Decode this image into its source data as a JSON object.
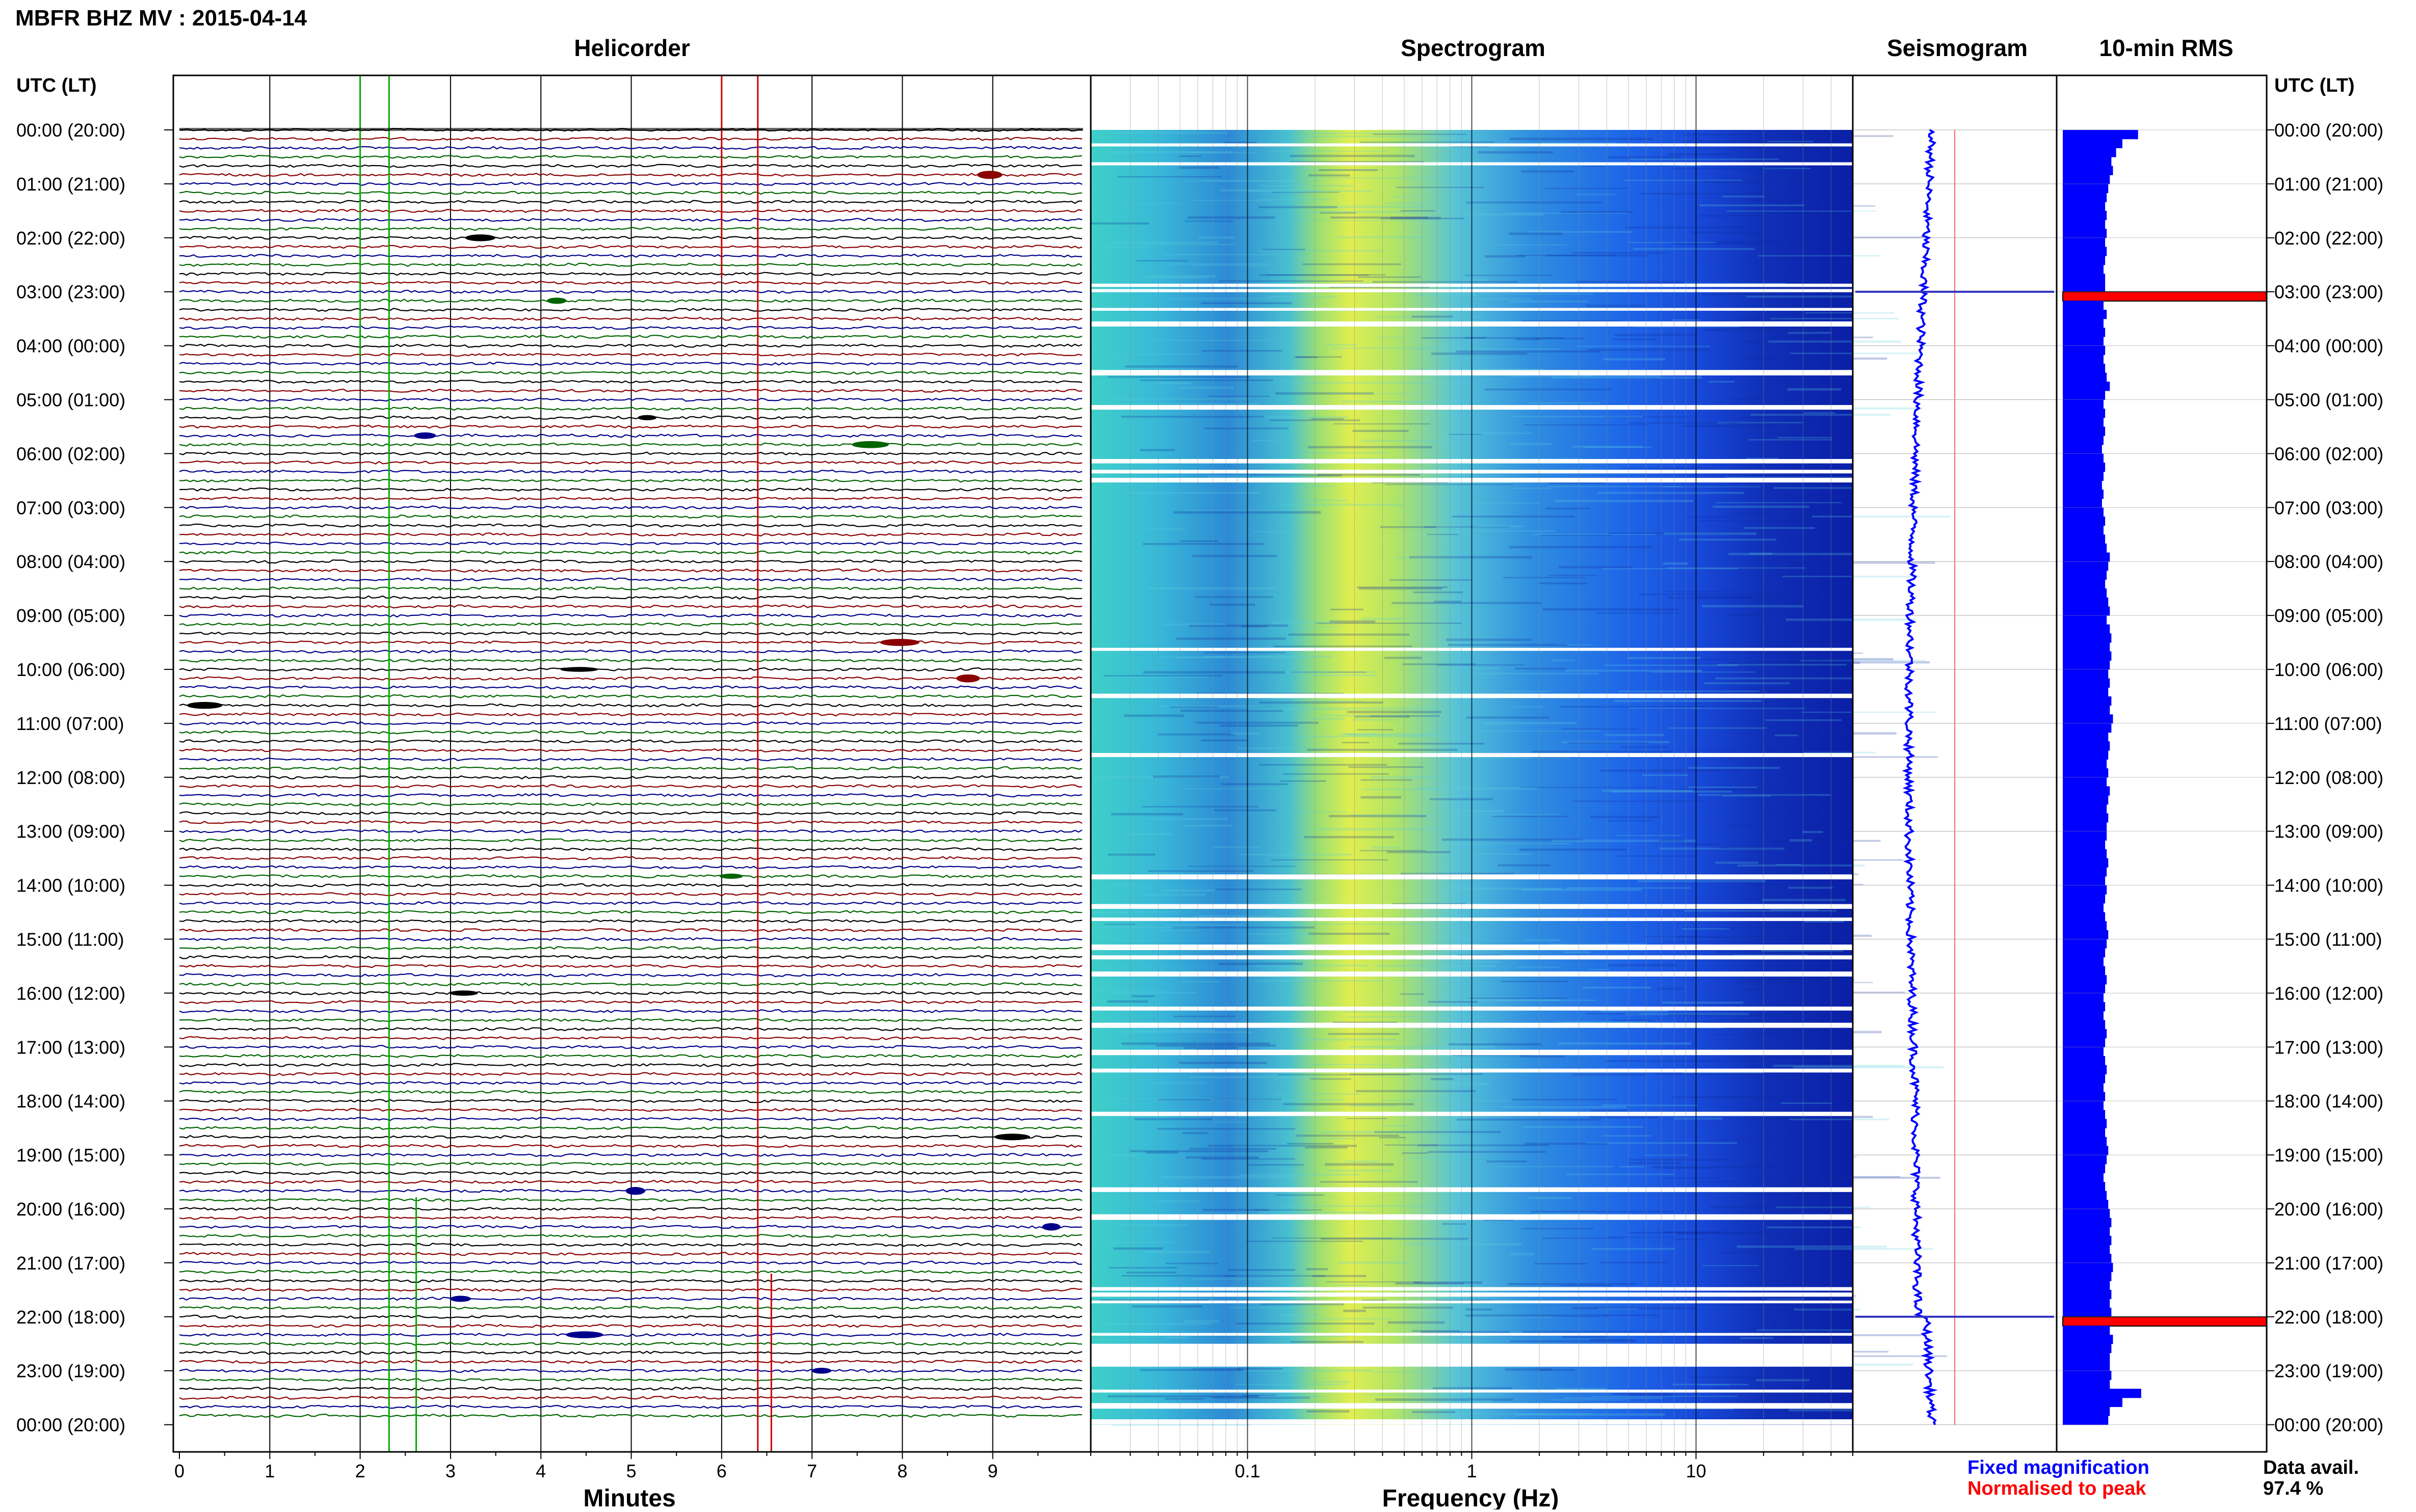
{
  "header": {
    "title": "MBFR BHZ MV : 2015-04-14",
    "utc_label_left": "UTC (LT)",
    "utc_label_right": "UTC (LT)"
  },
  "panels": {
    "helicorder": "Helicorder",
    "spectrogram": "Spectrogram",
    "seismogram": "Seismogram",
    "rms": "10-min RMS"
  },
  "time_labels": [
    "00:00 (20:00)",
    "01:00 (21:00)",
    "02:00 (22:00)",
    "03:00 (23:00)",
    "04:00 (00:00)",
    "05:00 (01:00)",
    "06:00 (02:00)",
    "07:00 (03:00)",
    "08:00 (04:00)",
    "09:00 (05:00)",
    "10:00 (06:00)",
    "11:00 (07:00)",
    "12:00 (08:00)",
    "13:00 (09:00)",
    "14:00 (10:00)",
    "15:00 (11:00)",
    "16:00 (12:00)",
    "17:00 (13:00)",
    "18:00 (14:00)",
    "19:00 (15:00)",
    "20:00 (16:00)",
    "21:00 (17:00)",
    "22:00 (18:00)",
    "23:00 (19:00)",
    "00:00 (20:00)"
  ],
  "footer": {
    "fixed_magnification": "Fixed magnification",
    "normalised_to_peak": "Normalised to peak",
    "data_avail_label": "Data avail.",
    "data_avail_value": "97.4 %"
  },
  "colors": {
    "trace_black": "#000000",
    "trace_red": "#8b0000",
    "trace_blue": "#00008b",
    "trace_green": "#006400",
    "rms_blue": "#0000ff",
    "rms_peak_red": "#ff0000",
    "fixed_magnification": "#0000ff",
    "normalised_to_peak": "#ff0000"
  },
  "chart_data": [
    {
      "type": "line",
      "panel": "helicorder",
      "xlabel": "Minutes",
      "xlim": [
        0,
        10
      ],
      "x_ticks": [
        "0",
        "1",
        "2",
        "3",
        "4",
        "5",
        "6",
        "7",
        "8",
        "9"
      ],
      "rows_per_hour": 6,
      "trace_colors_cycle": [
        "black",
        "red",
        "blue",
        "green"
      ]
    },
    {
      "type": "heatmap",
      "panel": "spectrogram",
      "xlabel": "Frequency (Hz)",
      "x_scale": "log",
      "xlim": [
        0.02,
        50
      ],
      "x_ticks": [
        "0.1",
        "1",
        "10"
      ]
    },
    {
      "type": "line",
      "panel": "seismogram",
      "peaks_utc_hours": [
        3.0,
        22.0
      ],
      "legend": [
        "Fixed magnification",
        "Normalised to peak"
      ]
    },
    {
      "type": "bar",
      "panel": "rms",
      "interval_minutes": 10,
      "relative_values": [
        0.48,
        0.38,
        0.34,
        0.31,
        0.32,
        0.3,
        0.29,
        0.28,
        0.27,
        0.28,
        0.27,
        0.28,
        0.27,
        0.28,
        0.27,
        0.26,
        0.27,
        0.27,
        1.3,
        0.26,
        0.28,
        0.26,
        0.27,
        0.26,
        0.27,
        0.26,
        0.27,
        0.28,
        0.3,
        0.27,
        0.26,
        0.27,
        0.26,
        0.27,
        0.26,
        0.25,
        0.26,
        0.27,
        0.26,
        0.25,
        0.26,
        0.25,
        0.26,
        0.27,
        0.26,
        0.27,
        0.28,
        0.3,
        0.29,
        0.28,
        0.27,
        0.28,
        0.29,
        0.3,
        0.28,
        0.3,
        0.31,
        0.3,
        0.31,
        0.3,
        0.29,
        0.3,
        0.29,
        0.31,
        0.3,
        0.32,
        0.31,
        0.29,
        0.3,
        0.29,
        0.28,
        0.29,
        0.28,
        0.3,
        0.29,
        0.28,
        0.29,
        0.28,
        0.28,
        0.27,
        0.28,
        0.29,
        0.28,
        0.27,
        0.28,
        0.27,
        0.26,
        0.27,
        0.28,
        0.29,
        0.28,
        0.27,
        0.26,
        0.27,
        0.28,
        0.27,
        0.26,
        0.27,
        0.26,
        0.27,
        0.28,
        0.27,
        0.26,
        0.27,
        0.28,
        0.27,
        0.26,
        0.27,
        0.26,
        0.27,
        0.28,
        0.27,
        0.28,
        0.29,
        0.28,
        0.27,
        0.26,
        0.27,
        0.28,
        0.29,
        0.3,
        0.31,
        0.3,
        0.31,
        0.3,
        0.31,
        0.32,
        0.31,
        0.3,
        0.31,
        0.3,
        0.31,
        1.3,
        0.3,
        0.32,
        0.31,
        0.3,
        0.3,
        0.31,
        0.3,
        0.5,
        0.38,
        0.3,
        0.29
      ]
    }
  ]
}
